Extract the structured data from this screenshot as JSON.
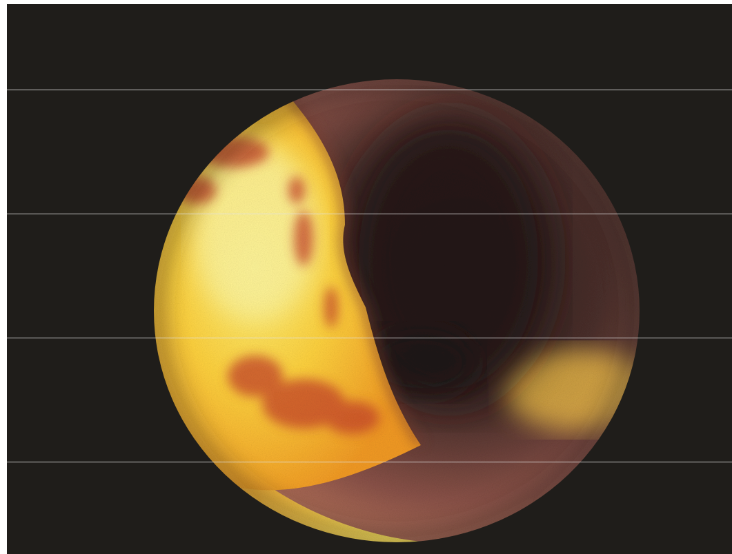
{
  "image": {
    "subject": "endoscopic-view",
    "colors": {
      "background": "#1f1d1a",
      "tissue_bright": "#ffec6a",
      "tissue_mid": "#f4a82c",
      "tissue_red": "#c8442a",
      "lumen_dark": "#2a1d1b",
      "lumen_mid": "#6a403a",
      "wall_pink": "#b77062",
      "scanline": "#e1e1e1"
    }
  }
}
